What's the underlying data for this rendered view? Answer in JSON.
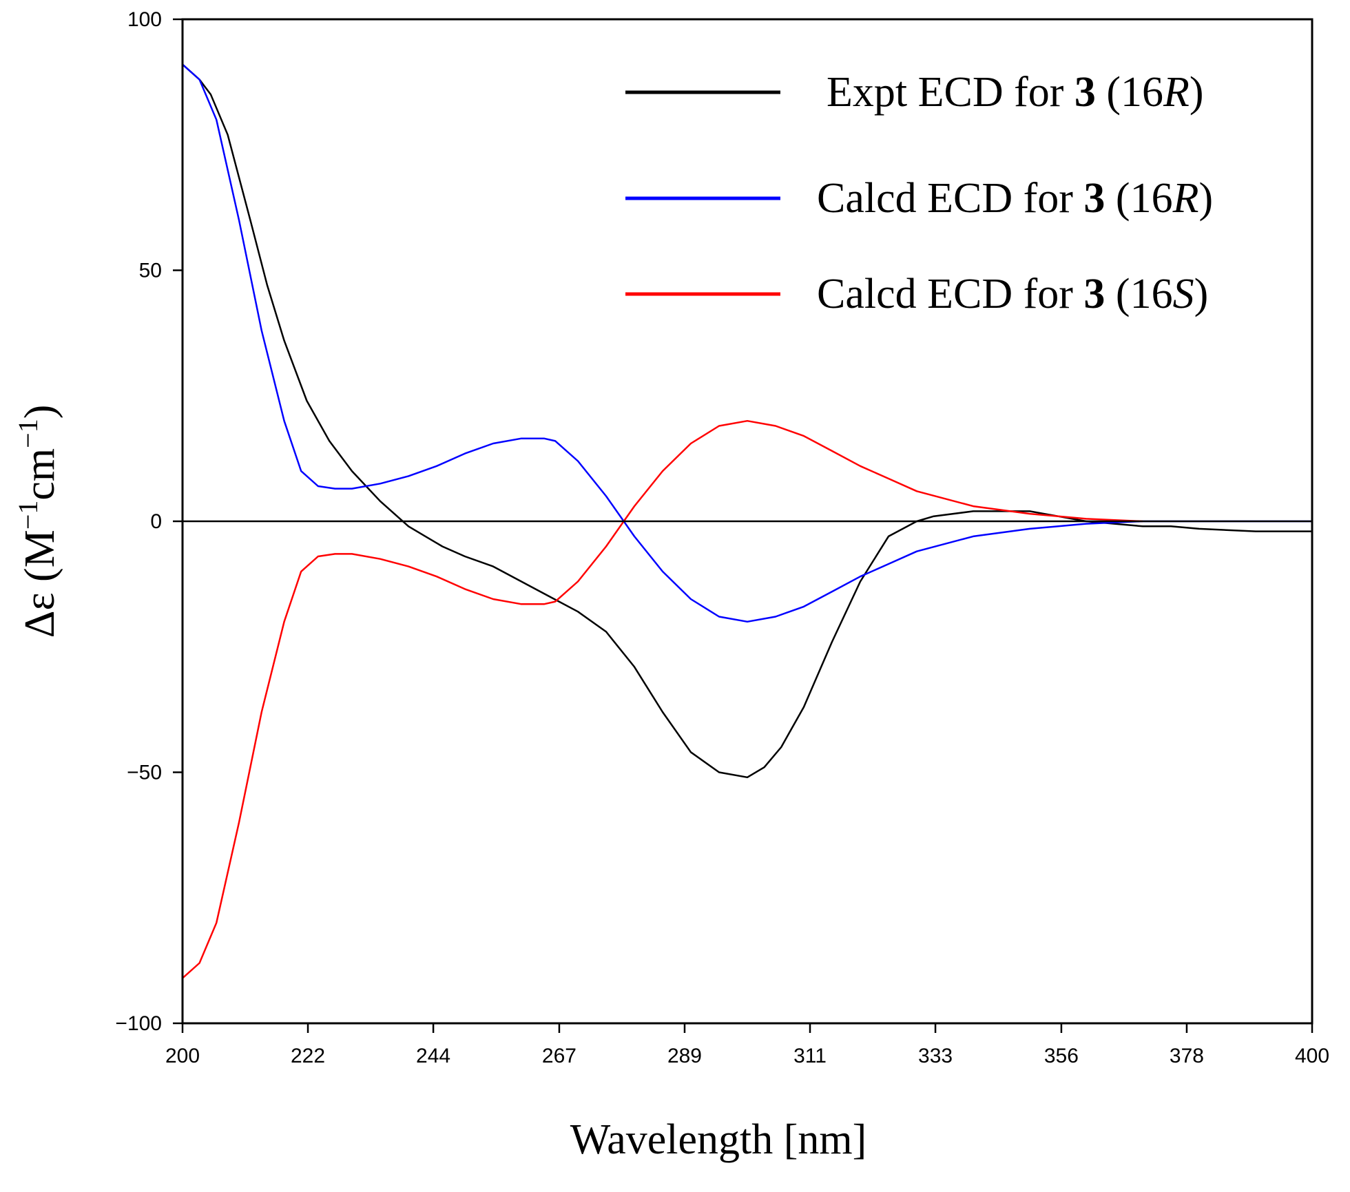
{
  "chart_data": {
    "type": "line",
    "title": "",
    "xlabel": "Wavelength [nm]",
    "ylabel": {
      "prefix": "Δε (M",
      "sup1": "−1",
      "mid": "cm",
      "sup2": "−1",
      "suffix": ")"
    },
    "xlim": [
      200,
      400
    ],
    "ylim": [
      -100,
      100
    ],
    "x_ticks": [
      200,
      222.2,
      244.4,
      266.7,
      288.9,
      311.1,
      333.3,
      355.6,
      377.8,
      400
    ],
    "x_tick_labels": [
      "200",
      "222",
      "244",
      "267",
      "289",
      "311",
      "333",
      "356",
      "378",
      "400"
    ],
    "y_ticks": [
      -100,
      -50,
      0,
      50,
      100
    ],
    "y_tick_labels": [
      "−100",
      "−50",
      "0",
      "50",
      "100"
    ],
    "zero_line": true,
    "grid": false,
    "legend_position": "top-right",
    "series": [
      {
        "name": "Expt ECD for 3 (16R)",
        "label": {
          "pre": "Expt ECD for ",
          "bold": "3",
          "mid": " (16",
          "ital": "R",
          "post": ")"
        },
        "color": "#000000",
        "x": [
          200,
          203,
          205,
          208,
          212,
          215,
          218,
          222,
          226,
          230,
          235,
          240,
          243,
          246,
          250,
          255,
          260,
          265,
          270,
          275,
          280,
          285,
          290,
          295,
          300,
          303,
          306,
          310,
          315,
          320,
          325,
          330,
          333,
          340,
          345,
          350,
          355,
          360,
          365,
          370,
          375,
          380,
          390,
          400
        ],
        "y": [
          91,
          88,
          85,
          77,
          60,
          47,
          36,
          24,
          16,
          10,
          4,
          -1,
          -3,
          -5,
          -7,
          -9,
          -12,
          -15,
          -18,
          -22,
          -29,
          -38,
          -46,
          -50,
          -51,
          -49,
          -45,
          -37,
          -24,
          -12,
          -3,
          0,
          1,
          2,
          2,
          2,
          1,
          0,
          -0.5,
          -1,
          -1,
          -1.5,
          -2,
          -2
        ]
      },
      {
        "name": "Calcd ECD for 3 (16R)",
        "label": {
          "pre": "Calcd ECD for ",
          "bold": "3",
          "mid": " (16",
          "ital": "R",
          "post": ")"
        },
        "color": "#0000ff",
        "x": [
          200,
          203,
          206,
          210,
          214,
          218,
          221,
          224,
          227,
          230,
          235,
          240,
          245,
          250,
          255,
          260,
          264,
          266,
          270,
          275,
          280,
          285,
          290,
          295,
          300,
          305,
          310,
          315,
          320,
          325,
          330,
          340,
          350,
          360,
          370,
          380,
          390,
          400
        ],
        "y": [
          91,
          88,
          80,
          60,
          38,
          20,
          10,
          7,
          6.5,
          6.5,
          7.5,
          9,
          11,
          13.5,
          15.5,
          16.5,
          16.5,
          16,
          12,
          5,
          -3,
          -10,
          -15.5,
          -19,
          -20,
          -19,
          -17,
          -14,
          -11,
          -8.5,
          -6,
          -3,
          -1.5,
          -0.5,
          0,
          0,
          0,
          0
        ]
      },
      {
        "name": "Calcd ECD for 3 (16S)",
        "label": {
          "pre": "Calcd ECD for ",
          "bold": "3",
          "mid": " (16",
          "ital": "S",
          "post": ")"
        },
        "color": "#ff0000",
        "x": [
          200,
          203,
          206,
          210,
          214,
          218,
          221,
          224,
          227,
          230,
          235,
          240,
          245,
          250,
          255,
          260,
          264,
          266,
          270,
          275,
          280,
          285,
          290,
          295,
          300,
          305,
          310,
          315,
          320,
          325,
          330,
          340,
          350,
          360,
          370
        ],
        "y": [
          -91,
          -88,
          -80,
          -60,
          -38,
          -20,
          -10,
          -7,
          -6.5,
          -6.5,
          -7.5,
          -9,
          -11,
          -13.5,
          -15.5,
          -16.5,
          -16.5,
          -16,
          -12,
          -5,
          3,
          10,
          15.5,
          19,
          20,
          19,
          17,
          14,
          11,
          8.5,
          6,
          3,
          1.5,
          0.5,
          0
        ]
      }
    ]
  }
}
